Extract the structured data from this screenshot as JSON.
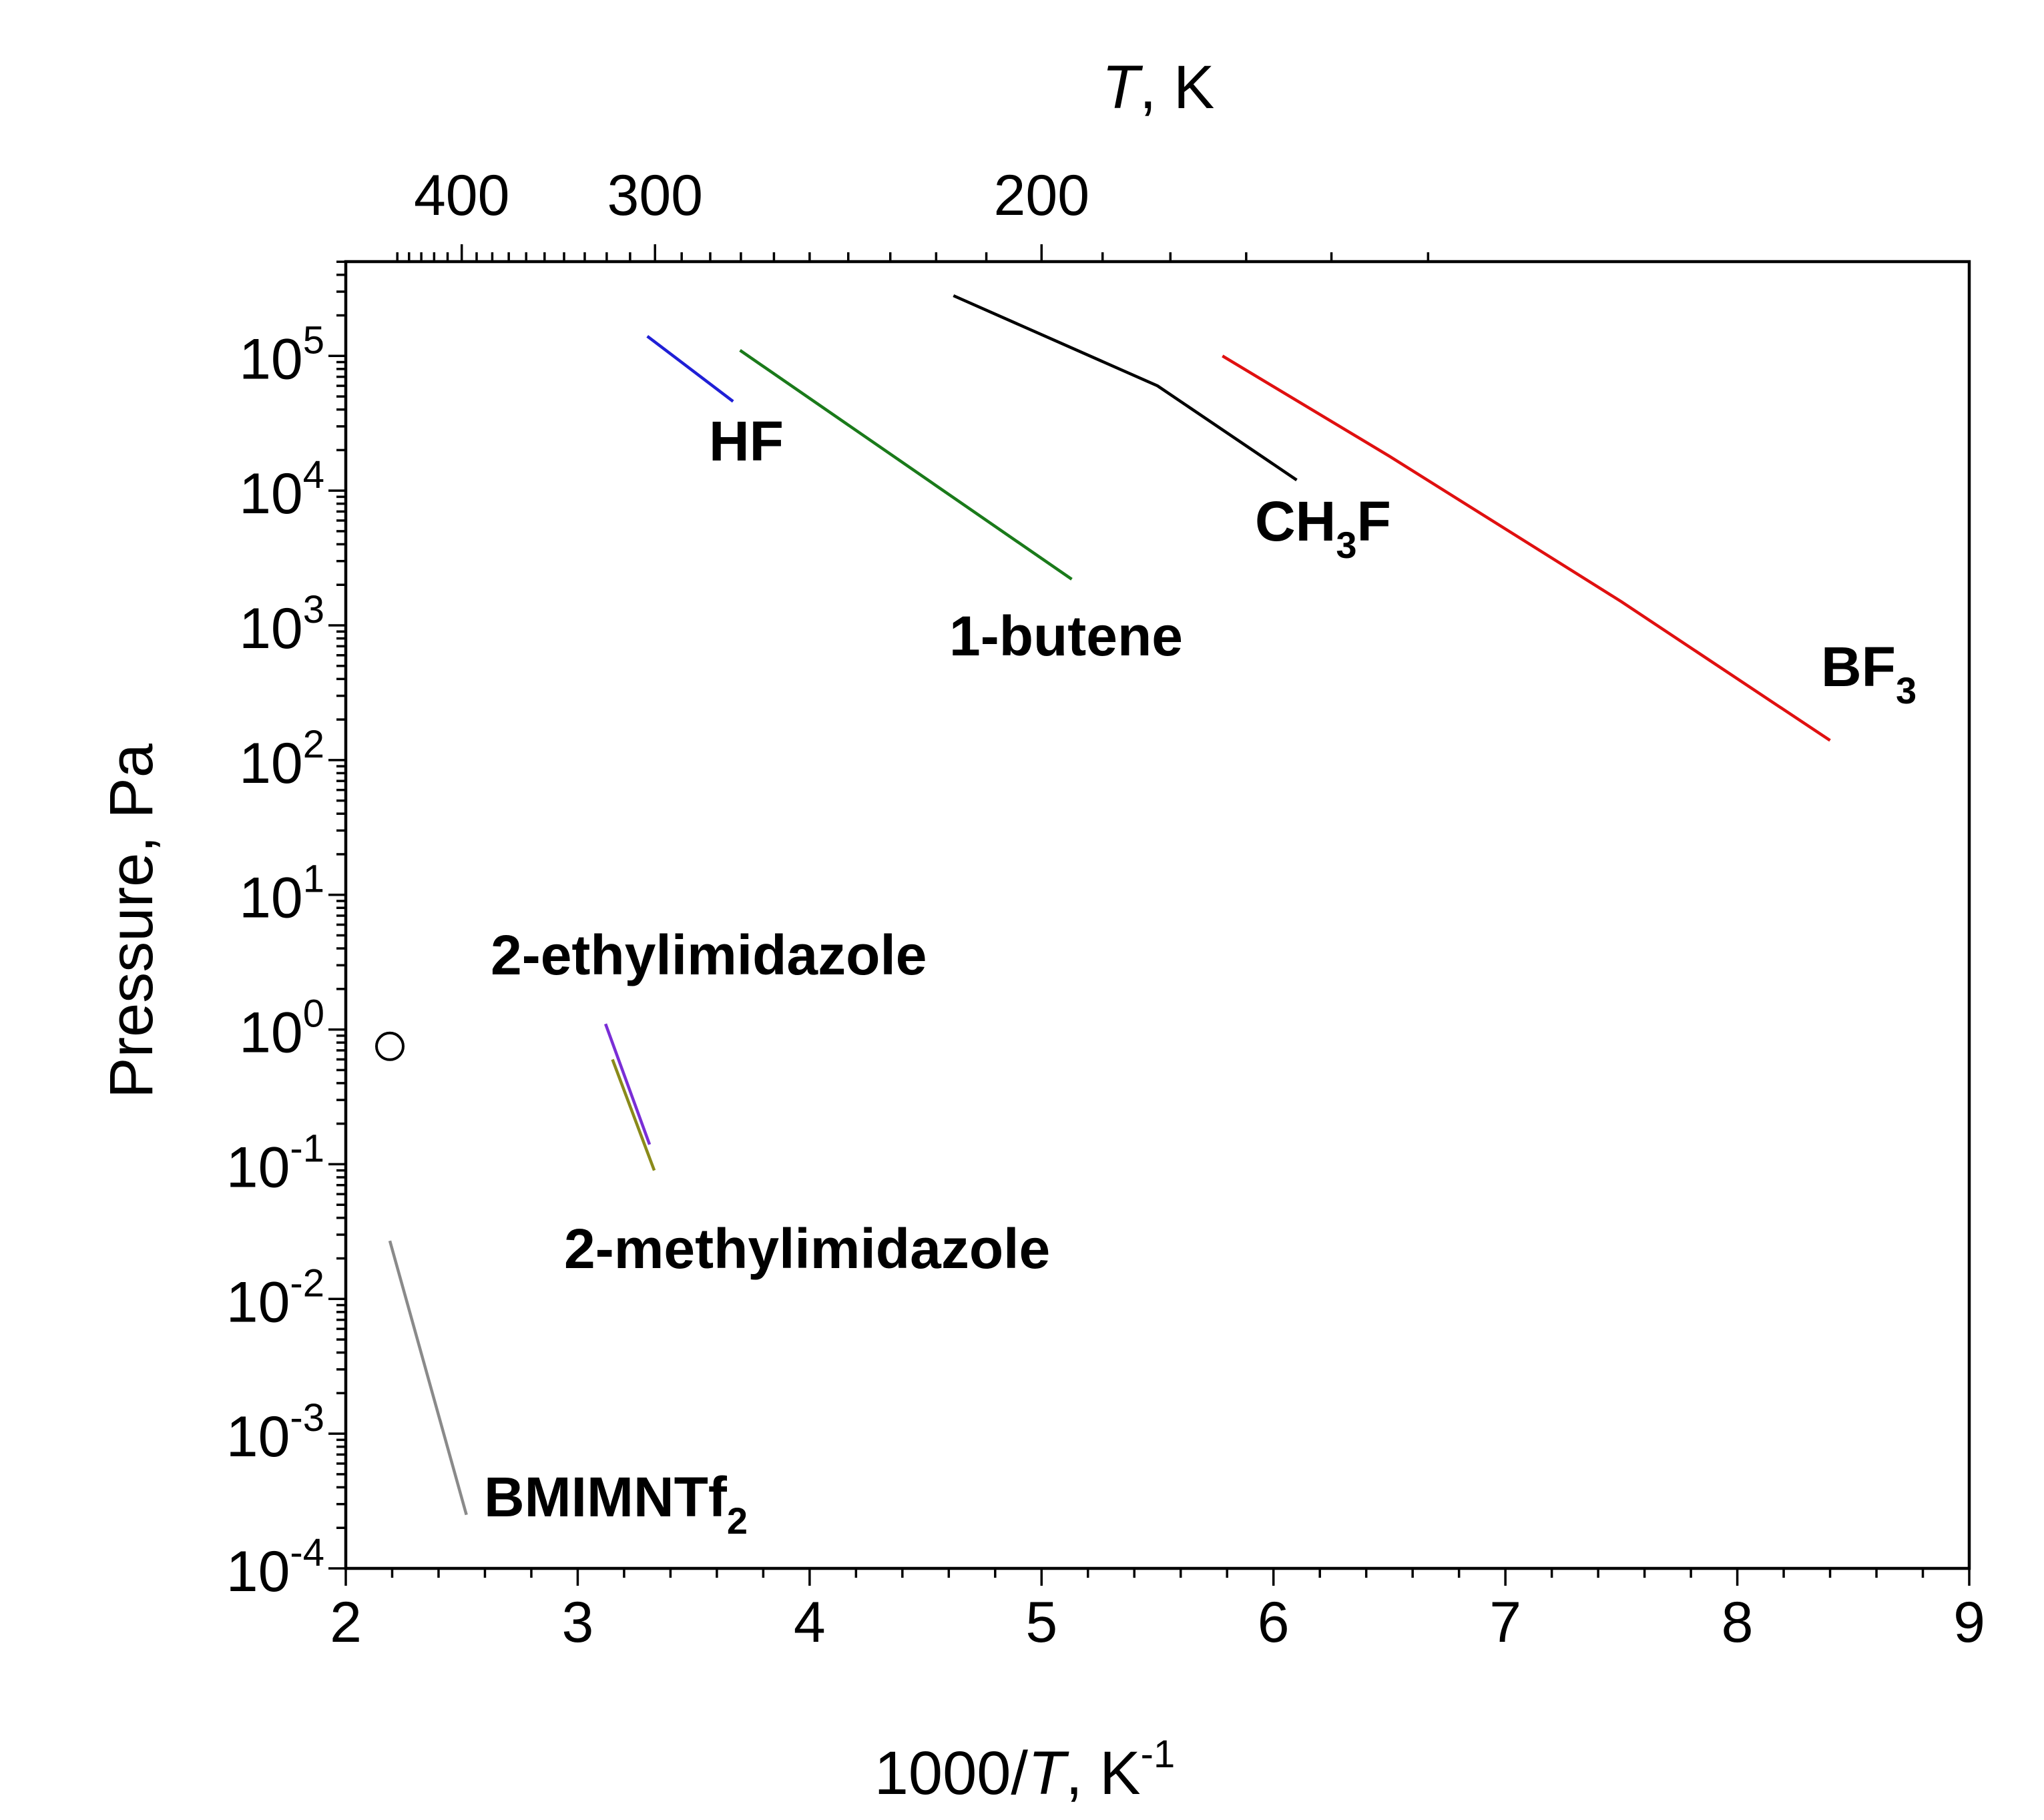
{
  "chart_data": {
    "type": "line",
    "xlabel": {
      "main": "1000/",
      "var": "T",
      "unit": ", K",
      "sup": "-1"
    },
    "x2label": {
      "var": "T",
      "unit": ", K"
    },
    "ylabel": "Pressure, Pa",
    "xlim": [
      2,
      9
    ],
    "ylim_exp": [
      -4,
      5.7
    ],
    "yscale": "log",
    "x_ticks": [
      "2",
      "3",
      "4",
      "5",
      "6",
      "7",
      "8",
      "9"
    ],
    "y_ticks": [
      {
        "base": "10",
        "exp": "-4"
      },
      {
        "base": "10",
        "exp": "-3"
      },
      {
        "base": "10",
        "exp": "-2"
      },
      {
        "base": "10",
        "exp": "-1"
      },
      {
        "base": "10",
        "exp": "0"
      },
      {
        "base": "10",
        "exp": "1"
      },
      {
        "base": "10",
        "exp": "2"
      },
      {
        "base": "10",
        "exp": "3"
      },
      {
        "base": "10",
        "exp": "4"
      },
      {
        "base": "10",
        "exp": "5"
      }
    ],
    "top_axis_ticks": [
      "400",
      "300",
      "200"
    ],
    "series": [
      {
        "name": "HF",
        "sub": "",
        "color": "#1f1fd6",
        "x": [
          3.3,
          3.67
        ],
        "y": [
          140000,
          46000
        ]
      },
      {
        "name": "1-butene",
        "sub": "",
        "color": "#1a7a1a",
        "x": [
          3.7,
          5.13
        ],
        "y": [
          110000,
          2200
        ]
      },
      {
        "name": "CH",
        "sub": "3",
        "suffix": "F",
        "color": "#000000",
        "x": [
          4.62,
          5.5,
          6.1
        ],
        "y": [
          280000,
          60000,
          12000
        ]
      },
      {
        "name": "BF",
        "sub": "3",
        "color": "#e01010",
        "x": [
          5.78,
          6.5,
          7.5,
          8.4
        ],
        "y": [
          100000,
          18000,
          1500,
          140
        ]
      },
      {
        "name": "2-ethylimidazole",
        "sub": "",
        "color": "#7a2ed6",
        "x": [
          3.12,
          3.31
        ],
        "y": [
          1.1,
          0.14
        ]
      },
      {
        "name": "2-methylimidazole",
        "sub": "",
        "color": "#8a8a1a",
        "x": [
          3.15,
          3.33
        ],
        "y": [
          0.6,
          0.09
        ]
      },
      {
        "name": "BMIMNTf",
        "sub": "2",
        "color": "#8a8a8a",
        "x": [
          2.19,
          2.52
        ],
        "y": [
          0.027,
          0.00025
        ]
      }
    ],
    "markers": [
      {
        "type": "open-circle",
        "x": 2.19,
        "y": 0.75
      }
    ],
    "grid": false,
    "legend": "none (direct labels)"
  }
}
